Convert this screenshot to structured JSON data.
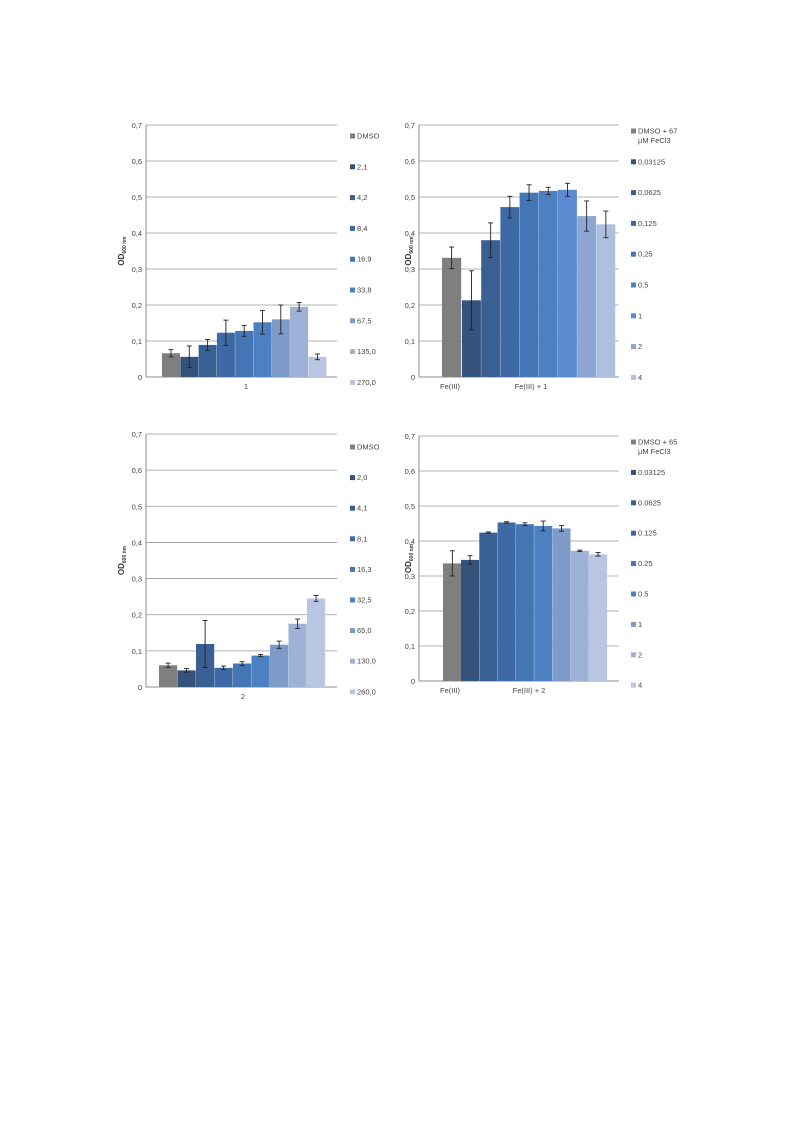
{
  "chart_data": [
    {
      "type": "bar",
      "ylabel": "OD",
      "ylabel_sub": "600 nm",
      "ylim": [
        0,
        0.7
      ],
      "yticks": [
        "0",
        "0,1",
        "0,2",
        "0,3",
        "0,4",
        "0,5",
        "0,6",
        "0,7"
      ],
      "categories": [
        "1"
      ],
      "grid": true,
      "legend_position": "right",
      "series": [
        {
          "name": "DMSO",
          "color": "#7f7f7f",
          "values": [
            0.066
          ],
          "error": [
            0.01
          ]
        },
        {
          "name": "2,1",
          "color": "#35527a",
          "values": [
            0.056
          ],
          "error": [
            0.03
          ]
        },
        {
          "name": "4,2",
          "color": "#3a5f93",
          "values": [
            0.089
          ],
          "error": [
            0.015
          ]
        },
        {
          "name": "8,4",
          "color": "#3e69a5",
          "values": [
            0.123
          ],
          "error": [
            0.035
          ]
        },
        {
          "name": "16,9",
          "color": "#4475b5",
          "values": [
            0.128
          ],
          "error": [
            0.015
          ]
        },
        {
          "name": "33,8",
          "color": "#4b80c2",
          "values": [
            0.152
          ],
          "error": [
            0.033
          ]
        },
        {
          "name": "67,5",
          "color": "#7e9ac9",
          "values": [
            0.16
          ],
          "error": [
            0.04
          ]
        },
        {
          "name": "135,0",
          "color": "#9eb1d6",
          "values": [
            0.195
          ],
          "error": [
            0.012
          ]
        },
        {
          "name": "270,0",
          "color": "#b8c6e1",
          "values": [
            0.056
          ],
          "error": [
            0.008
          ]
        }
      ]
    },
    {
      "type": "bar",
      "ylabel": "OD",
      "ylabel_sub": "600 nm",
      "ylim": [
        0,
        0.7
      ],
      "yticks": [
        "0",
        "0,1",
        "0,2",
        "0,3",
        "0,4",
        "0,5",
        "0,6",
        "0,7"
      ],
      "categories": [
        "Fe(III)",
        "Fe(III) + 1"
      ],
      "grid": true,
      "legend_position": "right",
      "legend_first_line2": "µM FeCl3",
      "series": [
        {
          "name": "DMSO + 67",
          "color": "#7f7f7f",
          "values": [
            0.331,
            null
          ],
          "error": [
            0.03,
            null
          ]
        },
        {
          "name": "0,03125",
          "color": "#35527a",
          "values": [
            null,
            0.213
          ],
          "error": [
            null,
            0.082
          ]
        },
        {
          "name": "0,0625",
          "color": "#3a5f93",
          "values": [
            null,
            0.38
          ],
          "error": [
            null,
            0.048
          ]
        },
        {
          "name": "0,125",
          "color": "#3e69a5",
          "values": [
            null,
            0.472
          ],
          "error": [
            null,
            0.03
          ]
        },
        {
          "name": "0,25",
          "color": "#4475b5",
          "values": [
            null,
            0.512
          ],
          "error": [
            null,
            0.022
          ]
        },
        {
          "name": "0,5",
          "color": "#4b80c2",
          "values": [
            null,
            0.517
          ],
          "error": [
            null,
            0.01
          ]
        },
        {
          "name": "1",
          "color": "#5b8ad0",
          "values": [
            null,
            0.52
          ],
          "error": [
            null,
            0.018
          ]
        },
        {
          "name": "2",
          "color": "#8ea7d2",
          "values": [
            null,
            0.447
          ],
          "error": [
            null,
            0.042
          ]
        },
        {
          "name": "4",
          "color": "#aebfdf",
          "values": [
            null,
            0.424
          ],
          "error": [
            null,
            0.037
          ]
        }
      ]
    },
    {
      "type": "bar",
      "ylabel": "OD",
      "ylabel_sub": "600 nm",
      "ylim": [
        0,
        0.7
      ],
      "yticks": [
        "0",
        "0,1",
        "0,2",
        "0,3",
        "0,4",
        "0,5",
        "0,6",
        "0,7"
      ],
      "categories": [
        "2"
      ],
      "grid": true,
      "legend_position": "right",
      "series": [
        {
          "name": "DMSO",
          "color": "#7f7f7f",
          "values": [
            0.06
          ],
          "error": [
            0.006
          ]
        },
        {
          "name": "2,0",
          "color": "#35527a",
          "values": [
            0.046
          ],
          "error": [
            0.005
          ]
        },
        {
          "name": "4,1",
          "color": "#3a5f93",
          "values": [
            0.119
          ],
          "error": [
            0.065
          ]
        },
        {
          "name": "8,1",
          "color": "#3e69a5",
          "values": [
            0.053
          ],
          "error": [
            0.005
          ]
        },
        {
          "name": "16,3",
          "color": "#4475b5",
          "values": [
            0.065
          ],
          "error": [
            0.005
          ]
        },
        {
          "name": "32,5",
          "color": "#4b80c2",
          "values": [
            0.087
          ],
          "error": [
            0.003
          ]
        },
        {
          "name": "65,0",
          "color": "#7e9ac9",
          "values": [
            0.117
          ],
          "error": [
            0.01
          ]
        },
        {
          "name": "130,0",
          "color": "#9eb1d6",
          "values": [
            0.175
          ],
          "error": [
            0.013
          ]
        },
        {
          "name": "260,0",
          "color": "#b8c6e1",
          "values": [
            0.245
          ],
          "error": [
            0.008
          ]
        }
      ]
    },
    {
      "type": "bar",
      "ylabel": "OD",
      "ylabel_sub": "600 nm",
      "ylim": [
        0,
        0.7
      ],
      "yticks": [
        "0",
        "0,1",
        "0,2",
        "0,3",
        "0,4",
        "0,5",
        "0,6",
        "0,7"
      ],
      "categories": [
        "Fe(III)",
        "Fe(III) + 2"
      ],
      "grid": true,
      "legend_position": "right",
      "legend_first_line2": "µM FeCl3",
      "series": [
        {
          "name": "DMSO + 65",
          "color": "#7f7f7f",
          "values": [
            0.336,
            null
          ],
          "error": [
            0.036,
            null
          ]
        },
        {
          "name": "0.03125",
          "color": "#35527a",
          "values": [
            null,
            0.346
          ],
          "error": [
            null,
            0.012
          ]
        },
        {
          "name": "0.0625",
          "color": "#3a5f93",
          "values": [
            null,
            0.424
          ],
          "error": [
            null,
            0.002
          ]
        },
        {
          "name": "0.125",
          "color": "#3e69a5",
          "values": [
            null,
            0.453
          ],
          "error": [
            null,
            0.002
          ]
        },
        {
          "name": "0.25",
          "color": "#4475b5",
          "values": [
            null,
            0.448
          ],
          "error": [
            null,
            0.004
          ]
        },
        {
          "name": "0.5",
          "color": "#4b80c2",
          "values": [
            null,
            0.443
          ],
          "error": [
            null,
            0.014
          ]
        },
        {
          "name": "1",
          "color": "#7e9ac9",
          "values": [
            null,
            0.436
          ],
          "error": [
            null,
            0.008
          ]
        },
        {
          "name": "2",
          "color": "#9eb1d6",
          "values": [
            null,
            0.372
          ],
          "error": [
            null,
            0.002
          ]
        },
        {
          "name": "4",
          "color": "#b8c6e1",
          "values": [
            null,
            0.362
          ],
          "error": [
            null,
            0.005
          ]
        }
      ]
    }
  ]
}
